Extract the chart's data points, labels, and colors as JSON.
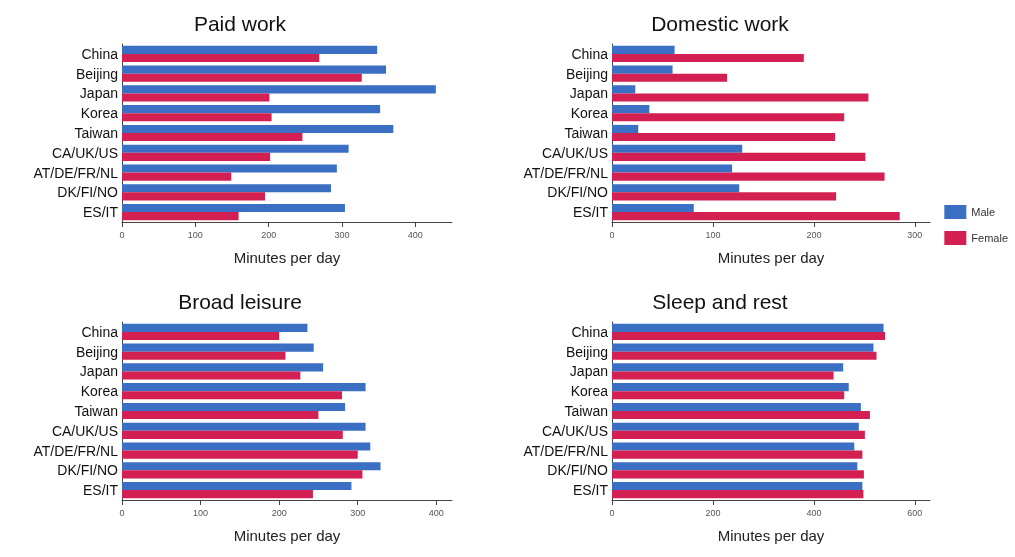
{
  "chart_data": [
    {
      "type": "bar",
      "orientation": "horizontal",
      "title": "Paid work",
      "xlabel": "Minutes per day",
      "categories": [
        "China",
        "Beijing",
        "Japan",
        "Korea",
        "Taiwan",
        "CA/UK/US",
        "AT/DE/FR/NL",
        "DK/FI/NO",
        "ES/IT"
      ],
      "xlim": [
        0,
        450
      ],
      "xticks": [
        0,
        100,
        200,
        300,
        400
      ],
      "grid": false,
      "legend": false,
      "series": [
        {
          "color": "#3a6fc4",
          "values": [
            348,
            360,
            428,
            352,
            370,
            309,
            293,
            285,
            304
          ]
        },
        {
          "color": "#d41f52",
          "values": [
            269,
            327,
            201,
            204,
            246,
            202,
            149,
            195,
            159
          ]
        }
      ]
    },
    {
      "type": "bar",
      "orientation": "horizontal",
      "title": "Domestic work",
      "xlabel": "Minutes per day",
      "categories": [
        "China",
        "Beijing",
        "Japan",
        "Korea",
        "Taiwan",
        "CA/UK/US",
        "AT/DE/FR/NL",
        "DK/FI/NO",
        "ES/IT"
      ],
      "xlim": [
        0,
        315
      ],
      "xticks": [
        0,
        100,
        200,
        300
      ],
      "grid": false,
      "legend": "right",
      "series": [
        {
          "name": "Male",
          "color": "#3a6fc4",
          "values": [
            62,
            60,
            23,
            37,
            26,
            129,
            119,
            126,
            81
          ]
        },
        {
          "name": "Female",
          "color": "#d41f52",
          "values": [
            190,
            114,
            254,
            230,
            221,
            251,
            270,
            222,
            285
          ]
        }
      ]
    },
    {
      "type": "bar",
      "orientation": "horizontal",
      "title": "Broad leisure",
      "xlabel": "Minutes per day",
      "categories": [
        "China",
        "Beijing",
        "Japan",
        "Korea",
        "Taiwan",
        "CA/UK/US",
        "AT/DE/FR/NL",
        "DK/FI/NO",
        "ES/IT"
      ],
      "xlim": [
        0,
        420
      ],
      "xticks": [
        0,
        100,
        200,
        300,
        400
      ],
      "grid": false,
      "legend": false,
      "series": [
        {
          "color": "#3a6fc4",
          "values": [
            236,
            244,
            256,
            310,
            284,
            310,
            316,
            329,
            292
          ]
        },
        {
          "color": "#d41f52",
          "values": [
            200,
            208,
            227,
            280,
            250,
            281,
            300,
            306,
            243
          ]
        }
      ]
    },
    {
      "type": "bar",
      "orientation": "horizontal",
      "title": "Sleep and rest",
      "xlabel": "Minutes per day",
      "categories": [
        "China",
        "Beijing",
        "Japan",
        "Korea",
        "Taiwan",
        "CA/UK/US",
        "AT/DE/FR/NL",
        "DK/FI/NO",
        "ES/IT"
      ],
      "xlim": [
        0,
        630
      ],
      "xticks": [
        0,
        200,
        400,
        600
      ],
      "grid": false,
      "legend": false,
      "series": [
        {
          "color": "#3a6fc4",
          "values": [
            538,
            518,
            458,
            469,
            493,
            489,
            480,
            486,
            496
          ]
        },
        {
          "color": "#d41f52",
          "values": [
            541,
            524,
            439,
            460,
            511,
            501,
            496,
            499,
            498
          ]
        }
      ]
    }
  ]
}
